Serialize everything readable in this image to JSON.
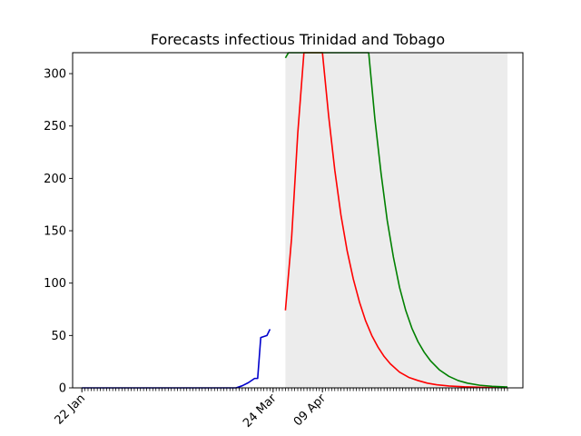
{
  "chart_data": {
    "type": "line",
    "title": "Forecasts infectious Trinidad and Tobago",
    "xlabel": "",
    "ylabel": "",
    "x_axis": {
      "kind": "date",
      "start": "2020-01-22",
      "end": "2020-06-08",
      "tick_labels": [
        {
          "date": "2020-01-22",
          "label": "22 Jan"
        },
        {
          "date": "2020-03-24",
          "label": "24 Mar"
        },
        {
          "date": "2020-04-09",
          "label": "09 Apr"
        }
      ]
    },
    "ylim": [
      0,
      320
    ],
    "yticks": [
      0,
      50,
      100,
      150,
      200,
      250,
      300
    ],
    "grid": false,
    "forecast_band": {
      "start": "2020-03-28",
      "end": "2020-06-08",
      "color": "#ececec"
    },
    "series": [
      {
        "color": "#0000cc",
        "points": [
          [
            "2020-01-22",
            0
          ],
          [
            "2020-03-12",
            0
          ],
          [
            "2020-03-14",
            2
          ],
          [
            "2020-03-16",
            5
          ],
          [
            "2020-03-18",
            9
          ],
          [
            "2020-03-19",
            9
          ],
          [
            "2020-03-20",
            48
          ],
          [
            "2020-03-21",
            49
          ],
          [
            "2020-03-22",
            50
          ],
          [
            "2020-03-23",
            56
          ]
        ]
      },
      {
        "color": "#ff0000",
        "points": [
          [
            "2020-03-28",
            74
          ],
          [
            "2020-03-30",
            143
          ],
          [
            "2020-04-01",
            243
          ],
          [
            "2020-04-03",
            320
          ],
          [
            "2020-04-09",
            320
          ],
          [
            "2020-04-11",
            260
          ],
          [
            "2020-04-13",
            208
          ],
          [
            "2020-04-15",
            165
          ],
          [
            "2020-04-17",
            131
          ],
          [
            "2020-04-19",
            104
          ],
          [
            "2020-04-21",
            82
          ],
          [
            "2020-04-23",
            64
          ],
          [
            "2020-04-25",
            50
          ],
          [
            "2020-04-27",
            39
          ],
          [
            "2020-04-29",
            30
          ],
          [
            "2020-05-01",
            23
          ],
          [
            "2020-05-04",
            15
          ],
          [
            "2020-05-07",
            10
          ],
          [
            "2020-05-10",
            7
          ],
          [
            "2020-05-13",
            4.5
          ],
          [
            "2020-05-16",
            3
          ],
          [
            "2020-05-20",
            1.8
          ],
          [
            "2020-05-25",
            1
          ],
          [
            "2020-06-01",
            0.4
          ],
          [
            "2020-06-08",
            0.2
          ]
        ]
      },
      {
        "color": "#008000",
        "points": [
          [
            "2020-03-28",
            315
          ],
          [
            "2020-03-29",
            320
          ],
          [
            "2020-04-24",
            320
          ],
          [
            "2020-04-26",
            257
          ],
          [
            "2020-04-28",
            205
          ],
          [
            "2020-04-30",
            160
          ],
          [
            "2020-05-02",
            125
          ],
          [
            "2020-05-04",
            96
          ],
          [
            "2020-05-06",
            74
          ],
          [
            "2020-05-08",
            57
          ],
          [
            "2020-05-10",
            44
          ],
          [
            "2020-05-12",
            34
          ],
          [
            "2020-05-14",
            26
          ],
          [
            "2020-05-17",
            17
          ],
          [
            "2020-05-20",
            11
          ],
          [
            "2020-05-23",
            7
          ],
          [
            "2020-05-26",
            4.5
          ],
          [
            "2020-05-30",
            2.5
          ],
          [
            "2020-06-03",
            1.5
          ],
          [
            "2020-06-08",
            0.8
          ]
        ]
      }
    ]
  }
}
